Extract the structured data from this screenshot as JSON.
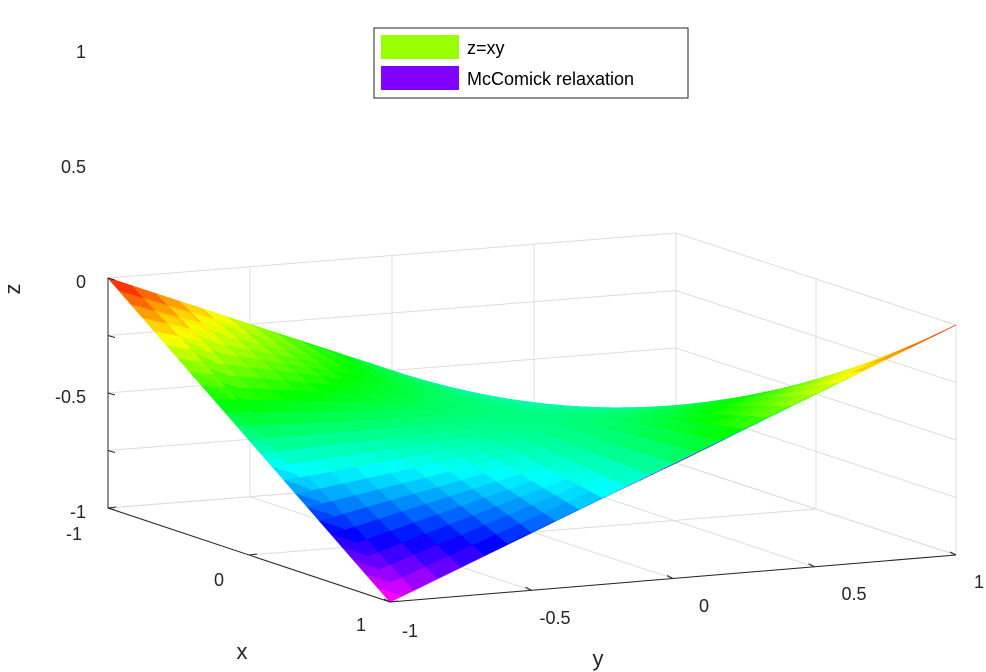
{
  "chart_data": {
    "type": "surface3d",
    "title": "",
    "xlabel": "x",
    "ylabel": "y",
    "zlabel": "z",
    "xlim": [
      -1,
      1
    ],
    "ylim": [
      -1,
      1
    ],
    "zlim": [
      -1,
      1
    ],
    "x_ticks": [
      "-1",
      "0",
      "1"
    ],
    "y_ticks": [
      "-1",
      "-0.5",
      "0",
      "0.5",
      "1"
    ],
    "z_ticks": [
      "-1",
      "-0.5",
      "0",
      "0.5",
      "1"
    ],
    "grid": true,
    "legend_position": "top-center",
    "series": [
      {
        "name": "z=xy",
        "function": "x*y",
        "colormap": "hsv",
        "legend_color": "#99ff00"
      },
      {
        "name": "McComick relaxation",
        "function": "max(-x-y-1, x+y-1)",
        "colormap": "hsv",
        "legend_color": "#8000ff"
      }
    ]
  }
}
